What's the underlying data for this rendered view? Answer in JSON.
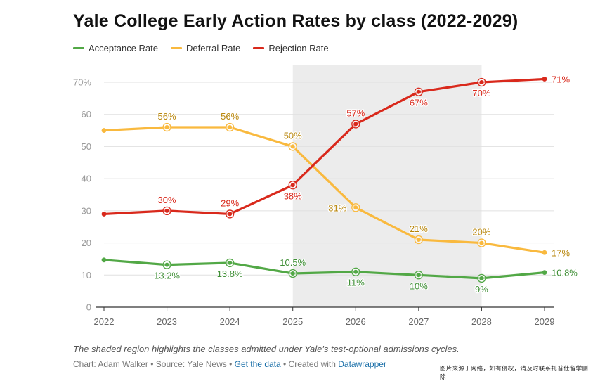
{
  "title": "Yale College Early Action Rates by class (2022-2029)",
  "legend": [
    {
      "label": "Acceptance Rate",
      "color": "#52a846"
    },
    {
      "label": "Deferral Rate",
      "color": "#f9b93e"
    },
    {
      "label": "Rejection Rate",
      "color": "#d9291c"
    }
  ],
  "note": "The shaded region highlights the classes admitted under Yale's test-optional admissions cycles.",
  "footer": {
    "chart_by": "Chart: Adam Walker",
    "sep1": " • ",
    "source": "Source: Yale News",
    "sep2": " • ",
    "get_data": "Get the data",
    "sep3": " • ",
    "created_with": "Created with ",
    "datawrapper": "Datawrapper"
  },
  "watermark": "图片来源于网络，如有侵权，请及时联系托普仕留学删除",
  "chart_data": {
    "type": "line",
    "title": "Yale College Early Action Rates by class (2022-2029)",
    "xlabel": "",
    "ylabel": "",
    "x": [
      2022,
      2023,
      2024,
      2025,
      2026,
      2027,
      2028,
      2029
    ],
    "ylim": [
      0,
      70
    ],
    "yticks": [
      0,
      10,
      20,
      30,
      40,
      50,
      60,
      70
    ],
    "ytick_labels": [
      "0",
      "10",
      "20",
      "30",
      "40",
      "50",
      "60",
      "70%"
    ],
    "shaded_x_range": [
      2025,
      2028
    ],
    "series": [
      {
        "name": "Acceptance Rate",
        "color": "#52a846",
        "label_color": "#3f8f36",
        "values": [
          14.7,
          13.2,
          13.8,
          10.5,
          11,
          10,
          9,
          10.8
        ],
        "labels": [
          null,
          "13.2%",
          "13.8%",
          "10.5%",
          "11%",
          "10%",
          "9%",
          "10.8%"
        ],
        "label_pos": [
          null,
          "below",
          "below",
          "above",
          "below",
          "below",
          "below",
          "right"
        ],
        "markers": [
          false,
          true,
          true,
          true,
          true,
          true,
          true,
          false
        ]
      },
      {
        "name": "Deferral Rate",
        "color": "#f9b93e",
        "label_color": "#b8860b",
        "values": [
          55,
          56,
          56,
          50,
          31,
          21,
          20,
          17
        ],
        "labels": [
          null,
          "56%",
          "56%",
          "50%",
          "31%",
          "21%",
          "20%",
          "17%"
        ],
        "label_pos": [
          null,
          "above",
          "above",
          "above",
          "left",
          "above",
          "above",
          "right"
        ],
        "markers": [
          false,
          true,
          true,
          true,
          true,
          true,
          true,
          false
        ]
      },
      {
        "name": "Rejection Rate",
        "color": "#d9291c",
        "label_color": "#d9291c",
        "values": [
          29,
          30,
          29,
          38,
          57,
          67,
          70,
          71
        ],
        "labels": [
          null,
          "30%",
          "29%",
          "38%",
          "57%",
          "67%",
          "70%",
          "71%"
        ],
        "label_pos": [
          null,
          "above",
          "above",
          "below",
          "above",
          "below",
          "below",
          "right"
        ],
        "markers": [
          false,
          true,
          true,
          true,
          true,
          true,
          true,
          false
        ]
      }
    ]
  }
}
